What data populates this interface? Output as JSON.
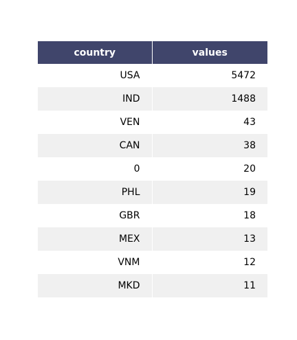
{
  "chart_data": {
    "type": "table",
    "columns": [
      "country",
      "values"
    ],
    "rows": [
      [
        "USA",
        5472
      ],
      [
        "IND",
        1488
      ],
      [
        "VEN",
        43
      ],
      [
        "CAN",
        38
      ],
      [
        "0",
        20
      ],
      [
        "PHL",
        19
      ],
      [
        "GBR",
        18
      ],
      [
        "MEX",
        13
      ],
      [
        "VNM",
        12
      ],
      [
        "MKD",
        11
      ]
    ]
  },
  "colors": {
    "header_background": "#40456b",
    "header_text": "#ffffff",
    "row_even": "#ffffff",
    "row_odd": "#f0f0f0"
  }
}
